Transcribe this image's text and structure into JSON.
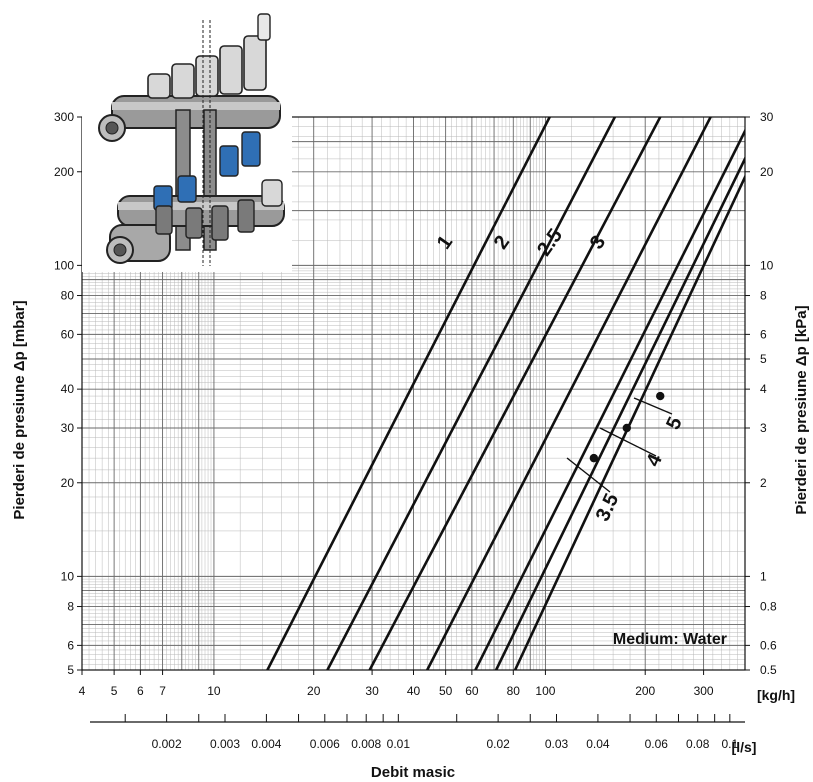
{
  "chart_data": {
    "type": "line",
    "x_scale": "log",
    "y_scale": "log",
    "xlim": [
      4,
      400
    ],
    "ylim": [
      5,
      300
    ],
    "x_ticks": [
      "4",
      "5",
      "6",
      "7",
      "10",
      "20",
      "30",
      "40",
      "50",
      "60",
      "80",
      "100",
      "200",
      "300"
    ],
    "x_unit": "[kg/h]",
    "x2_ticks": [
      "0.002",
      "0.003",
      "0.004",
      "0.006",
      "0.008",
      "0.01",
      "0.02",
      "0.03",
      "0.04",
      "0.06",
      "0.08",
      "0.1"
    ],
    "x2_unit": "[l/s]",
    "xlabel": "Debit masic",
    "y_ticks": [
      "5",
      "6",
      "8",
      "10",
      "20",
      "30",
      "40",
      "60",
      "80",
      "100",
      "200",
      "300"
    ],
    "ylabel": "Pierderi de presiune Δp   [mbar]",
    "y2_ticks": [
      "0.5",
      "0.6",
      "0.8",
      "1",
      "2",
      "3",
      "4",
      "5",
      "6",
      "8",
      "10",
      "20",
      "30"
    ],
    "y2label": "Pierderi de presiune Δp   [kPa]",
    "annotation": "Medium: Water",
    "grid": true,
    "series": [
      {
        "name": "1",
        "x": [
          14.5,
          103
        ],
        "y": [
          5,
          300
        ]
      },
      {
        "name": "2",
        "x": [
          22,
          162
        ],
        "y": [
          5,
          300
        ]
      },
      {
        "name": "2.5",
        "x": [
          29.5,
          222
        ],
        "y": [
          5,
          300
        ]
      },
      {
        "name": "3",
        "x": [
          44,
          315
        ],
        "y": [
          5,
          300
        ]
      },
      {
        "name": "3.5",
        "x": [
          61.5,
          420
        ],
        "y": [
          5,
          300
        ]
      },
      {
        "name": "4",
        "x": [
          71,
          420
        ],
        "y": [
          5,
          245
        ]
      },
      {
        "name": "5",
        "x": [
          81,
          420
        ],
        "y": [
          5,
          215
        ]
      }
    ],
    "markers": [
      {
        "series": "3.5",
        "x": 140,
        "y": 24
      },
      {
        "series": "4",
        "x": 176,
        "y": 30
      },
      {
        "series": "5",
        "x": 222,
        "y": 38
      }
    ]
  }
}
